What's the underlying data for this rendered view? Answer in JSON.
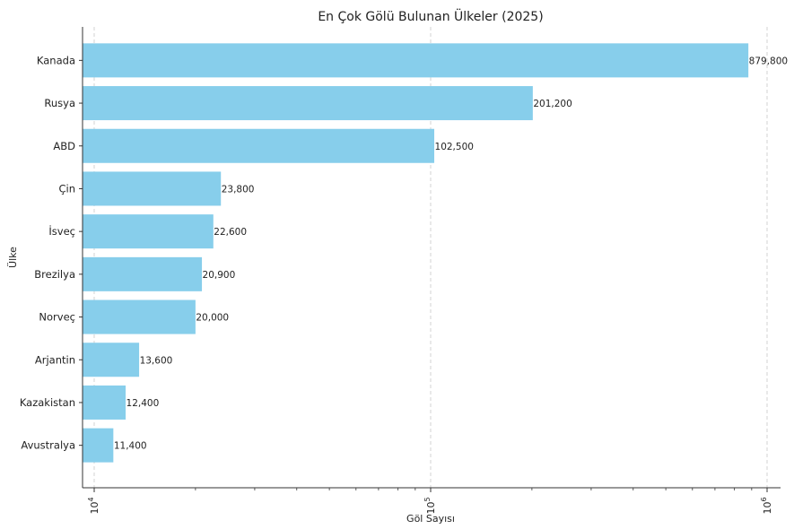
{
  "chart_data": {
    "type": "bar",
    "orientation": "horizontal",
    "title": "En Çok Gölü Bulunan Ülkeler (2025)",
    "xlabel": "Göl Sayısı",
    "ylabel": "Ülke",
    "x_scale": "log",
    "xlim": [
      8000,
      1200000
    ],
    "x_ticks": [
      {
        "value": 10000,
        "base": "10",
        "exp": "4"
      },
      {
        "value": 100000,
        "base": "10",
        "exp": "5"
      },
      {
        "value": 1000000,
        "base": "10",
        "exp": "6"
      }
    ],
    "grid": "vertical dashed",
    "bar_color": "#87CEEB",
    "categories": [
      "Kanada",
      "Rusya",
      "ABD",
      "Çin",
      "İsveç",
      "Brezilya",
      "Norveç",
      "Arjantin",
      "Kazakistan",
      "Avustralya"
    ],
    "values": [
      879800,
      201200,
      102500,
      23800,
      22600,
      20900,
      20000,
      13600,
      12400,
      11400
    ],
    "value_labels": [
      "879,800",
      "201,200",
      "102,500",
      "23,800",
      "22,600",
      "20,900",
      "20,000",
      "13,600",
      "12,400",
      "11,400"
    ]
  }
}
